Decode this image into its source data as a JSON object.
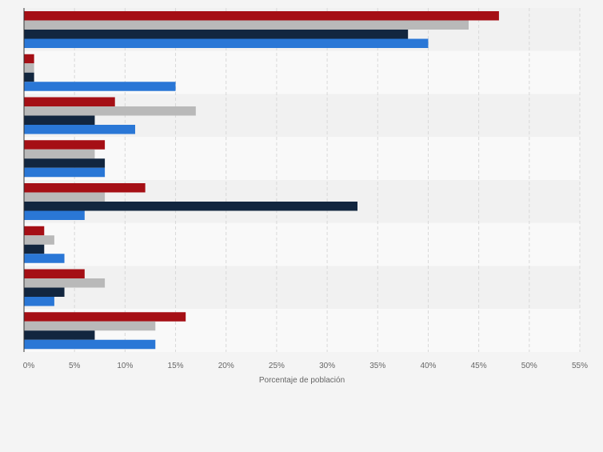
{
  "colors": {
    "background": "#f4f4f4",
    "band_light": "#f9f9f9",
    "band_dark": "#f1f1f1",
    "grid": "#d8d8d8",
    "axis": "#333333",
    "tick_text": "#666666"
  },
  "chart_data": {
    "type": "bar",
    "orientation": "horizontal",
    "title": "",
    "xlabel": "Porcentaje de población",
    "ylabel": "",
    "xlim": [
      0,
      55
    ],
    "x_ticks": [
      "0%",
      "5%",
      "10%",
      "15%",
      "20%",
      "25%",
      "30%",
      "35%",
      "40%",
      "45%",
      "50%",
      "55%"
    ],
    "grid": true,
    "legend": "none",
    "categories": [
      "",
      "",
      "",
      "",
      "",
      "",
      "",
      ""
    ],
    "series": [
      {
        "color": "#a50f15",
        "values": [
          47,
          1,
          9,
          8,
          12,
          2,
          6,
          16
        ]
      },
      {
        "color": "#b9b9b9",
        "values": [
          44,
          1,
          17,
          7,
          8,
          3,
          8,
          13
        ]
      },
      {
        "color": "#12263f",
        "values": [
          38,
          1,
          7,
          8,
          33,
          2,
          4,
          7
        ]
      },
      {
        "color": "#2a77d6",
        "values": [
          40,
          15,
          11,
          8,
          6,
          4,
          3,
          13
        ]
      }
    ]
  }
}
